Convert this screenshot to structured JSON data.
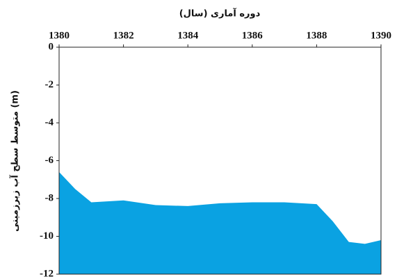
{
  "chart_data": {
    "type": "area",
    "title": "دوره آماری (سال)",
    "y_label": "متوسط سطح آب زیرزمینی (m)",
    "x": [
      1380,
      1380.5,
      1381,
      1382,
      1383,
      1384,
      1385,
      1386,
      1387,
      1388,
      1388.5,
      1389,
      1389.5,
      1390
    ],
    "values": [
      -6.6,
      -7.5,
      -8.2,
      -8.1,
      -8.35,
      -8.4,
      -8.25,
      -8.2,
      -8.2,
      -8.3,
      -9.2,
      -10.3,
      -10.4,
      -10.2
    ],
    "color": "#0aa2e2",
    "xlim": [
      1380,
      1390
    ],
    "xticks": [
      1380,
      1382,
      1384,
      1386,
      1388,
      1390
    ],
    "ylim": [
      -12,
      0
    ],
    "yticks": [
      0,
      -2,
      -4,
      -6,
      -8,
      -10,
      -12
    ]
  }
}
